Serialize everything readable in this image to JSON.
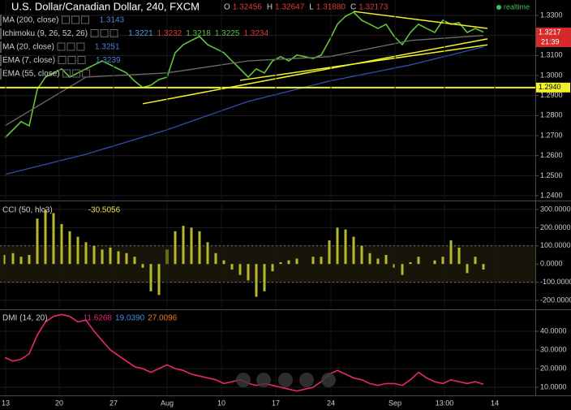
{
  "header": {
    "title": "U.S. Dollar/Canadian Dollar, 240, FXCM",
    "ohlc": [
      {
        "label": "O",
        "value": "1.32456"
      },
      {
        "label": "H",
        "value": "1.32647"
      },
      {
        "label": "L",
        "value": "1.31880"
      },
      {
        "label": "C",
        "value": "1.32173"
      }
    ],
    "status": "realtime",
    "price_tag": "1.3217",
    "countdown": "21:39"
  },
  "chart_data": [
    {
      "type": "line",
      "x": [
        0,
        1,
        2,
        3,
        4,
        5,
        6,
        7,
        8,
        9,
        10,
        11,
        12,
        13,
        14,
        15,
        16,
        17,
        18,
        19,
        20,
        21,
        22,
        23,
        24,
        25,
        26,
        27,
        28,
        29,
        30,
        31,
        32,
        33,
        34,
        35,
        36,
        37,
        38,
        39,
        40,
        41,
        42,
        43,
        44,
        45,
        46,
        47,
        48,
        49,
        50,
        51,
        52,
        53,
        54,
        55,
        56,
        57,
        58,
        59
      ],
      "xlim": [
        -0.6,
        65.4
      ],
      "ylim": [
        1.2384,
        1.3377
      ],
      "yticks": [
        {
          "value": 1.24,
          "label": "1.2400"
        },
        {
          "value": 1.25,
          "label": "1.2500"
        },
        {
          "value": 1.26,
          "label": "1.2600"
        },
        {
          "value": 1.27,
          "label": "1.2700"
        },
        {
          "value": 1.28,
          "label": "1.2800"
        },
        {
          "value": 1.29,
          "label": "1.2900"
        },
        {
          "value": 1.3,
          "label": "1.3000"
        },
        {
          "value": 1.31,
          "label": "1.3100"
        },
        {
          "value": 1.32,
          "label": "1.3200"
        },
        {
          "value": 1.33,
          "label": "1.3300"
        }
      ],
      "series": [
        {
          "color": "#62c43a",
          "values": [
            1.2689,
            1.2729,
            1.277,
            1.2749,
            1.2932,
            1.2992,
            1.3013,
            1.3033,
            1.2992,
            1.3013,
            1.3033,
            1.3053,
            1.3073,
            1.3053,
            1.3033,
            1.3013,
            1.2972,
            1.294,
            1.2952,
            1.298,
            1.2992,
            1.3114,
            1.3154,
            1.3175,
            1.3195,
            1.3154,
            1.3134,
            1.3114,
            1.3073,
            1.3033,
            1.2992,
            1.3033,
            1.3013,
            1.3073,
            1.3094,
            1.3073,
            1.3102,
            1.3094,
            1.3085,
            1.3102,
            1.3175,
            1.3256,
            1.3296,
            1.3316,
            1.3276,
            1.3256,
            1.3235,
            1.3256,
            1.3195,
            1.3154,
            1.3215,
            1.3256,
            1.3235,
            1.3215,
            1.3276,
            1.3256,
            1.3264,
            1.3215,
            1.3235,
            1.3217
          ]
        },
        {
          "name": "MA (200, close)",
          "color": "#2f4fa8",
          "x": [
            0,
            10,
            20,
            30,
            40,
            50,
            59
          ],
          "values": [
            1.2506,
            1.2607,
            1.2729,
            1.2871,
            1.2972,
            1.3053,
            1.3143
          ],
          "legend_values": [
            {
              "text": "1.3143",
              "color": "#4f7fd8"
            }
          ]
        },
        {
          "name": "Ichimoku (9, 26, 52, 26)",
          "legend_values": [
            {
              "text": "1.3221",
              "color": "#4f9fe8"
            },
            {
              "text": "1.3232",
              "color": "#e03a3a"
            },
            {
              "text": "1.3218",
              "color": "#5fc04a"
            },
            {
              "text": "1.3225",
              "color": "#5fc04a"
            },
            {
              "text": "1.3234",
              "color": "#e03a3a"
            }
          ]
        },
        {
          "name": "MA (20, close)",
          "legend_values": [
            {
              "text": "1.3251",
              "color": "#4f7fd8"
            }
          ]
        },
        {
          "name": "EMA (7, close)",
          "legend_values": [
            {
              "text": "1.3239",
              "color": "#4f7fd8"
            }
          ]
        },
        {
          "name": "EMA (55, close)",
          "color": "#6d6d6d",
          "x": [
            0,
            10,
            20,
            30,
            40,
            50,
            59
          ],
          "values": [
            1.2749,
            1.2992,
            1.3013,
            1.3073,
            1.3094,
            1.3175,
            1.32
          ]
        }
      ],
      "trendlines": [
        {
          "x": [
            17,
            59.5
          ],
          "values": [
            1.2859,
            1.3183
          ]
        },
        {
          "x": [
            29,
            59.5
          ],
          "values": [
            1.2976,
            1.3153
          ]
        },
        {
          "x": [
            43,
            59.5
          ],
          "values": [
            1.332,
            1.3235
          ]
        }
      ],
      "hline": {
        "value": 1.294,
        "label": "1.2940",
        "color": "#f2f22a"
      }
    },
    {
      "type": "bar",
      "title": "CCI (50, hlc3)",
      "value_label": "-30.5056",
      "color": "#b8b82c",
      "x": [
        0,
        1,
        2,
        3,
        4,
        5,
        6,
        7,
        8,
        9,
        10,
        11,
        12,
        13,
        14,
        15,
        16,
        17,
        18,
        19,
        20,
        21,
        22,
        23,
        24,
        25,
        26,
        27,
        28,
        29,
        30,
        31,
        32,
        33,
        34,
        35,
        36,
        37,
        38,
        39,
        40,
        41,
        42,
        43,
        44,
        45,
        46,
        47,
        48,
        49,
        50,
        51,
        52,
        53,
        54,
        55,
        56,
        57,
        58,
        59
      ],
      "values": [
        50,
        60,
        40,
        50,
        250,
        300,
        280,
        220,
        180,
        150,
        120,
        100,
        80,
        90,
        70,
        60,
        40,
        -20,
        -150,
        -170,
        80,
        180,
        210,
        200,
        180,
        120,
        60,
        20,
        -30,
        -60,
        -90,
        -180,
        -150,
        -40,
        10,
        20,
        30,
        0,
        40,
        40,
        130,
        200,
        190,
        150,
        100,
        60,
        30,
        50,
        -20,
        -60,
        10,
        40,
        0,
        20,
        40,
        130,
        90,
        -50,
        40,
        -30.5056
      ],
      "xlim": [
        -0.6,
        65.4
      ],
      "ylim": [
        -244.6,
        335.7
      ],
      "yticks": [
        {
          "value": 300,
          "label": "300.0000"
        },
        {
          "value": 200,
          "label": "200.0000"
        },
        {
          "value": 100,
          "label": "100.0000"
        },
        {
          "value": 0,
          "label": "0.0000"
        },
        {
          "value": -100,
          "label": "-100.0000"
        },
        {
          "value": -200,
          "label": "-200.0000"
        }
      ],
      "bands": [
        100,
        -100
      ]
    },
    {
      "type": "line",
      "title": "DMI (14, 20)",
      "legend_values": [
        {
          "text": "11.6268",
          "color": "#e8257a"
        },
        {
          "text": "19.0390",
          "color": "#3f8fe0"
        },
        {
          "text": "27.0096",
          "color": "#e87a25"
        }
      ],
      "x": [
        0,
        1,
        2,
        3,
        4,
        5,
        6,
        7,
        8,
        9,
        10,
        11,
        12,
        13,
        14,
        15,
        16,
        17,
        18,
        19,
        20,
        21,
        22,
        23,
        24,
        25,
        26,
        27,
        28,
        29,
        30,
        31,
        32,
        33,
        34,
        35,
        36,
        37,
        38,
        39,
        40,
        41,
        42,
        43,
        44,
        45,
        46,
        47,
        48,
        49,
        50,
        51,
        52,
        53,
        54,
        55,
        56,
        57,
        58,
        59
      ],
      "series": [
        {
          "color": "#e8257a",
          "values": [
            26,
            24,
            25,
            28,
            38,
            45,
            48,
            49,
            48,
            45,
            46,
            40,
            35,
            30,
            27,
            24,
            21,
            20,
            18,
            20,
            22,
            20,
            19,
            17,
            16,
            15,
            14,
            12,
            13,
            14,
            12,
            11,
            12,
            11,
            10,
            9,
            8,
            9,
            10,
            13,
            17,
            19,
            17,
            15,
            14,
            12,
            11,
            12,
            12,
            11,
            14,
            18,
            15,
            13,
            12,
            14,
            13,
            12,
            13,
            11.6268
          ]
        }
      ],
      "xlim": [
        -0.6,
        65.4
      ],
      "ylim": [
        5.65,
        50.9
      ],
      "yticks": [
        {
          "value": 40,
          "label": "40.0000"
        },
        {
          "value": 30,
          "label": "30.0000"
        },
        {
          "value": 20,
          "label": "20.0000"
        },
        {
          "value": 10,
          "label": "10.0000"
        }
      ],
      "xticks": [
        {
          "value": 0.1,
          "label": "13"
        },
        {
          "value": 6.7,
          "label": "20"
        },
        {
          "value": 13.4,
          "label": "27"
        },
        {
          "value": 20,
          "label": "Aug"
        },
        {
          "value": 26.7,
          "label": "10"
        },
        {
          "value": 33.4,
          "label": "17"
        },
        {
          "value": 40.2,
          "label": "24"
        },
        {
          "value": 48.1,
          "label": "Sep"
        },
        {
          "value": 54.2,
          "label": "13:00"
        },
        {
          "value": 60.4,
          "label": "14"
        }
      ]
    }
  ]
}
